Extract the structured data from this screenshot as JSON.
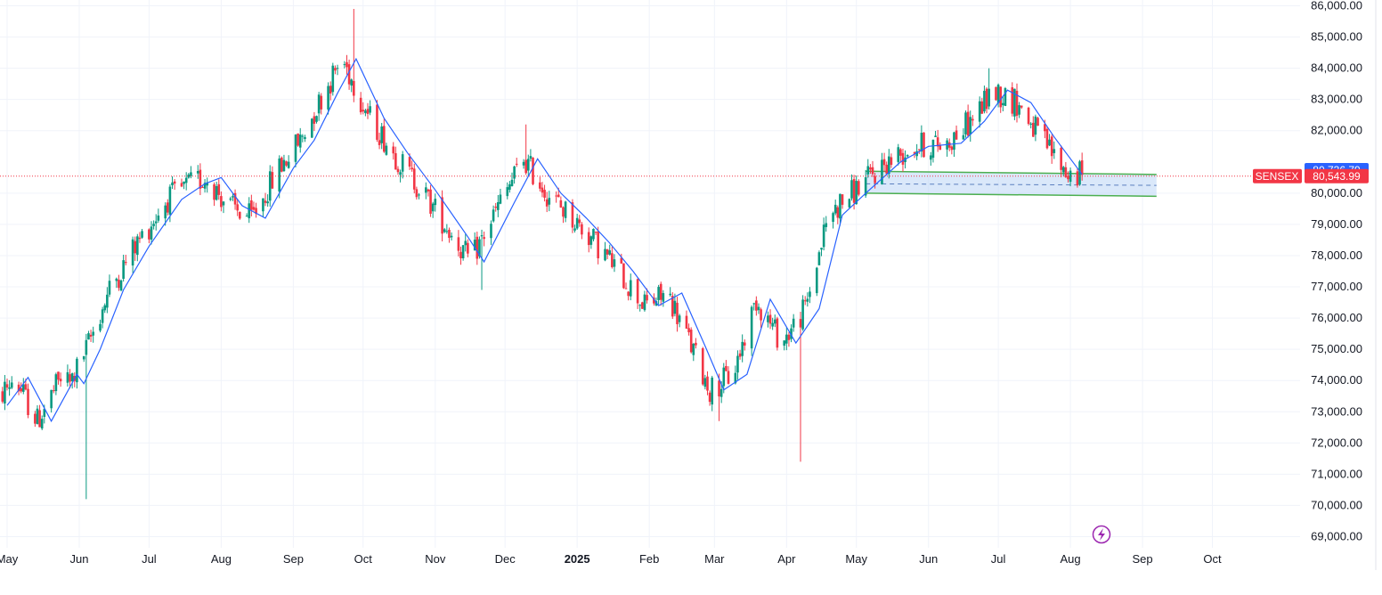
{
  "colors": {
    "up": "#089981",
    "down": "#f23645",
    "ma": "#2962ff",
    "grid": "#f0f3fa",
    "zone_fill": "#bbd5f5",
    "zone_border": "#4caf50",
    "current_line": "#f23645",
    "tag_blue": "#2962ff",
    "tag_red": "#f23645",
    "lightning": "#9c27b0"
  },
  "icons": {
    "lightning": "lightning-icon"
  },
  "chart_data": {
    "type": "candlestick",
    "symbol": "SENSEX",
    "x_labels": [
      "May",
      "Jun",
      "Jul",
      "Aug",
      "Sep",
      "Oct",
      "Nov",
      "Dec",
      "2025",
      "Feb",
      "Mar",
      "Apr",
      "May",
      "Jun",
      "Jul",
      "Aug",
      "Sep",
      "Oct"
    ],
    "x_label_bold": "2025",
    "x_range": [
      "2024-05-01",
      "2025-10-31"
    ],
    "y_range": [
      68700,
      86100
    ],
    "y_ticks": [
      "86,000.00",
      "85,000.00",
      "84,000.00",
      "83,000.00",
      "82,000.00",
      "80,000.00",
      "79,000.00",
      "78,000.00",
      "77,000.00",
      "76,000.00",
      "75,000.00",
      "74,000.00",
      "73,000.00",
      "72,000.00",
      "71,000.00",
      "70,000.00",
      "69,000.00"
    ],
    "grid": true,
    "price_tags": [
      {
        "label": "",
        "value": 80736.79,
        "text": "80,736.79",
        "color": "blue"
      },
      {
        "label": "SENSEX",
        "value": 80543.99,
        "text": "80,543.99",
        "color": "red"
      }
    ],
    "current_price": 80543.99,
    "moving_average": {
      "points": [
        [
          "2024-05-01",
          73200
        ],
        [
          "2024-05-10",
          74100
        ],
        [
          "2024-05-20",
          72700
        ],
        [
          "2024-05-31",
          74200
        ],
        [
          "2024-06-03",
          73900
        ],
        [
          "2024-06-10",
          75000
        ],
        [
          "2024-06-20",
          76900
        ],
        [
          "2024-07-01",
          78300
        ],
        [
          "2024-07-15",
          79800
        ],
        [
          "2024-07-25",
          80300
        ],
        [
          "2024-08-01",
          80500
        ],
        [
          "2024-08-10",
          79600
        ],
        [
          "2024-08-20",
          79200
        ],
        [
          "2024-09-01",
          80800
        ],
        [
          "2024-09-10",
          81700
        ],
        [
          "2024-09-20",
          83200
        ],
        [
          "2024-09-28",
          84300
        ],
        [
          "2024-10-10",
          82400
        ],
        [
          "2024-10-20",
          81300
        ],
        [
          "2024-11-01",
          80100
        ],
        [
          "2024-11-15",
          78600
        ],
        [
          "2024-11-22",
          77800
        ],
        [
          "2024-12-05",
          79700
        ],
        [
          "2024-12-15",
          81100
        ],
        [
          "2024-12-25",
          80000
        ],
        [
          "2025-01-05",
          79200
        ],
        [
          "2025-01-15",
          78400
        ],
        [
          "2025-01-25",
          77500
        ],
        [
          "2025-02-05",
          76400
        ],
        [
          "2025-02-15",
          76800
        ],
        [
          "2025-02-25",
          75100
        ],
        [
          "2025-03-05",
          73700
        ],
        [
          "2025-03-15",
          74200
        ],
        [
          "2025-03-25",
          76600
        ],
        [
          "2025-04-05",
          75200
        ],
        [
          "2025-04-15",
          76300
        ],
        [
          "2025-04-25",
          79300
        ],
        [
          "2025-05-05",
          80000
        ],
        [
          "2025-05-20",
          81000
        ],
        [
          "2025-06-01",
          81500
        ],
        [
          "2025-06-15",
          81600
        ],
        [
          "2025-06-25",
          82300
        ],
        [
          "2025-07-05",
          83300
        ],
        [
          "2025-07-15",
          82900
        ],
        [
          "2025-07-25",
          81800
        ],
        [
          "2025-08-06",
          80600
        ]
      ]
    },
    "zone": {
      "start": "2025-05-05",
      "end": "2025-09-07",
      "top": [
        80700,
        80600
      ],
      "bottom": [
        80000,
        79900
      ],
      "mid": [
        80300,
        80250
      ]
    },
    "candles_note": "OHLC candles generated deterministically from the moving-average path plus these anchor extremes",
    "anchors": [
      [
        "2024-06-04",
        70200,
        "low"
      ],
      [
        "2024-09-27",
        85900,
        "high"
      ],
      [
        "2024-11-21",
        76900,
        "low"
      ],
      [
        "2024-12-10",
        82200,
        "high"
      ],
      [
        "2025-03-03",
        72700,
        "low"
      ],
      [
        "2025-04-07",
        71400,
        "low"
      ],
      [
        "2025-06-27",
        84000,
        "high"
      ],
      [
        "2025-08-06",
        80400,
        "low"
      ]
    ]
  }
}
